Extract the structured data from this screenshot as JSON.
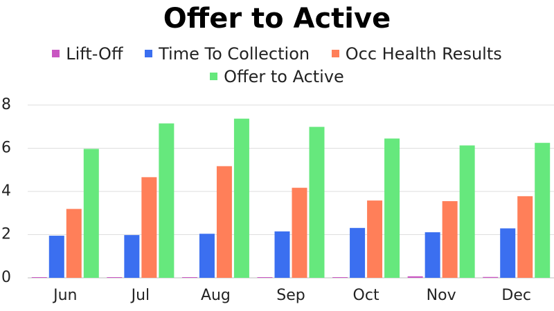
{
  "chart_data": {
    "type": "bar",
    "title": "Offer to Active",
    "xlabel": "",
    "ylabel": "",
    "categories": [
      "Jun",
      "Jul",
      "Aug",
      "Sep",
      "Oct",
      "Nov",
      "Dec"
    ],
    "ylim": [
      0,
      8
    ],
    "yticks": [
      0,
      2,
      4,
      6,
      8
    ],
    "grid": true,
    "legend_position": "top",
    "series": [
      {
        "name": "Lift-Off",
        "color": "#c956c2",
        "values": [
          0.02,
          0.02,
          0.01,
          0.03,
          0.02,
          0.07,
          0.04
        ]
      },
      {
        "name": "Time To Collection",
        "color": "#3b6ff0",
        "values": [
          1.95,
          1.98,
          2.04,
          2.15,
          2.31,
          2.11,
          2.29
        ]
      },
      {
        "name": "Occ Health Results",
        "color": "#ff7f59",
        "values": [
          3.19,
          4.66,
          5.17,
          4.17,
          3.58,
          3.55,
          3.78
        ]
      },
      {
        "name": "Offer to Active",
        "color": "#66e87d",
        "values": [
          5.97,
          7.15,
          7.37,
          6.99,
          6.45,
          6.13,
          6.25
        ]
      }
    ]
  }
}
